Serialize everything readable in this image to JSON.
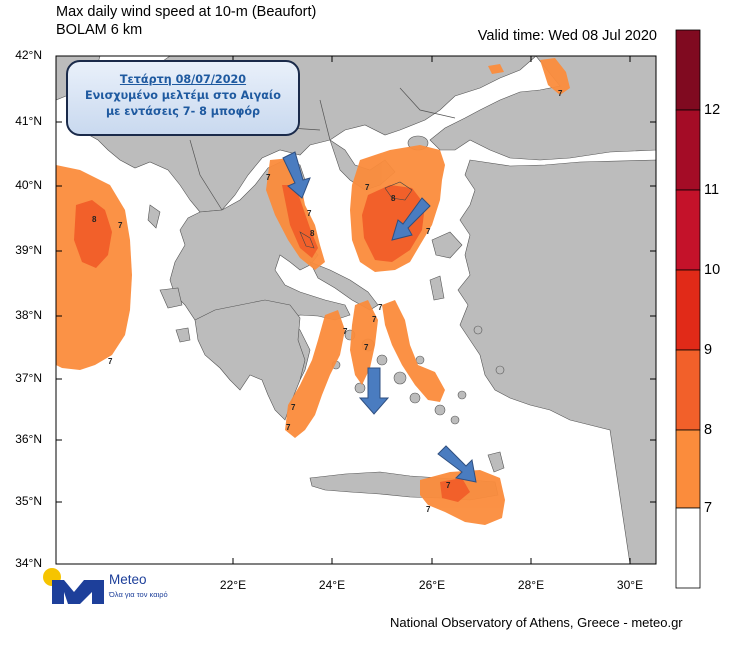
{
  "title": {
    "line1": "Max daily wind speed at 10-m (Beaufort)",
    "line2": "BOLAM 6 km",
    "valid_time": "Valid time: Wed 08 Jul 2020"
  },
  "callout": {
    "line1": "Τετάρτη 08/07/2020",
    "line2": "Ενισχυμένο μελτέμι στο Αιγαίο",
    "line3": "με εντάσεις 7- 8 μποφόρ"
  },
  "axes": {
    "lat_labels": [
      "42°N",
      "41°N",
      "40°N",
      "39°N",
      "38°N",
      "37°N",
      "36°N",
      "35°N",
      "34°N"
    ],
    "lon_labels": [
      "22°E",
      "24°E",
      "26°E",
      "28°E",
      "30°E"
    ]
  },
  "colorbar": {
    "labels": [
      "12",
      "11",
      "10",
      "9",
      "8",
      "7"
    ],
    "colors": [
      "#ffffff",
      "#fb8c3c",
      "#f2602a",
      "#e12a18",
      "#c4122a",
      "#a40c26",
      "#800a20"
    ]
  },
  "contour_labels": [
    "7",
    "8",
    "7",
    "7",
    "7",
    "8",
    "8",
    "7",
    "7",
    "7",
    "7",
    "7",
    "7",
    "7",
    "7",
    "7",
    "7",
    "7"
  ],
  "footer": "National Observatory of Athens, Greece - meteo.gr",
  "logo": {
    "name": "Meteo",
    "tagline": "Όλα για τον καιρό"
  },
  "map_colors": {
    "land": "#bcbcbc",
    "sea": "#ffffff",
    "border": "#555555",
    "wind7": "#fb8c3c",
    "wind8": "#f2602a",
    "arrow": "#4a7cc0"
  }
}
